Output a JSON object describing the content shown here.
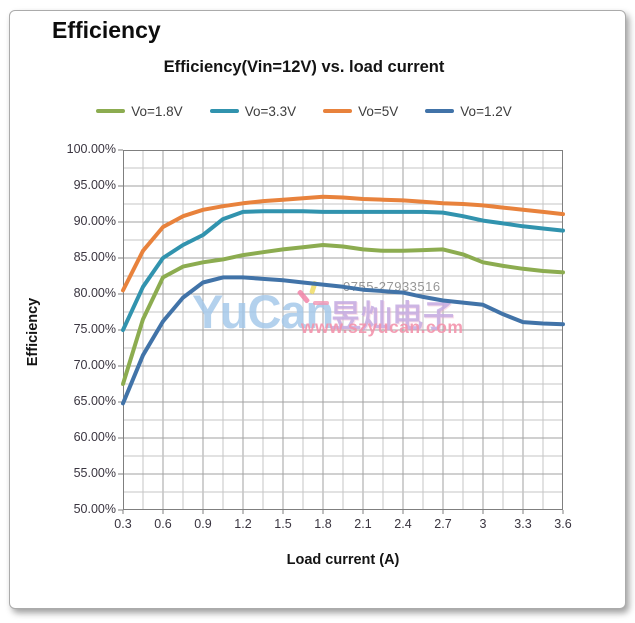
{
  "page": {
    "heading": "Efficiency"
  },
  "watermark": {
    "phone": "0755-27933516",
    "brand": "YuCan",
    "chinese": "昱灿电子",
    "url": "www.szyucan.com"
  },
  "chart_data": {
    "type": "line",
    "title": "Efficiency(Vin=12V) vs. load current",
    "xlabel": "Load current (A)",
    "ylabel": "Efficiency",
    "xlim": [
      0.3,
      3.6
    ],
    "ylim": [
      50,
      100
    ],
    "grid": true,
    "legend_position": "top",
    "x_tick_labels": [
      "0.3",
      "0.6",
      "0.9",
      "1.2",
      "1.5",
      "1.8",
      "2.1",
      "2.4",
      "2.7",
      "3",
      "3.3",
      "3.6"
    ],
    "x_major_ticks": [
      0.3,
      0.6,
      0.9,
      1.2,
      1.5,
      1.8,
      2.1,
      2.4,
      2.7,
      3.0,
      3.3,
      3.6
    ],
    "y_tick_labels": [
      "100.00%",
      "95.00%",
      "90.00%",
      "85.00%",
      "80.00%",
      "75.00%",
      "70.00%",
      "65.00%",
      "60.00%",
      "55.00%",
      "50.00%"
    ],
    "y_major_step": 5,
    "y_minor_step": 2.5,
    "x_minor_step": 0.15,
    "x": [
      0.3,
      0.45,
      0.6,
      0.75,
      0.9,
      1.05,
      1.2,
      1.35,
      1.5,
      1.65,
      1.8,
      1.95,
      2.1,
      2.25,
      2.4,
      2.55,
      2.7,
      2.85,
      3.0,
      3.15,
      3.3,
      3.45,
      3.6
    ],
    "series": [
      {
        "name": "Vo=1.8V",
        "color": "#8CAC50",
        "values": [
          67.5,
          76.5,
          82.3,
          83.8,
          84.4,
          84.8,
          85.4,
          85.8,
          86.2,
          86.5,
          86.8,
          86.6,
          86.2,
          86.0,
          86.0,
          86.1,
          86.2,
          85.5,
          84.4,
          83.9,
          83.5,
          83.2,
          83.0
        ]
      },
      {
        "name": "Vo=3.3V",
        "color": "#3193AE",
        "values": [
          75.0,
          81.0,
          85.0,
          86.8,
          88.2,
          90.4,
          91.4,
          91.5,
          91.5,
          91.5,
          91.4,
          91.4,
          91.4,
          91.4,
          91.4,
          91.4,
          91.3,
          90.8,
          90.2,
          89.8,
          89.4,
          89.1,
          88.8
        ]
      },
      {
        "name": "Vo=5V",
        "color": "#E8823C",
        "values": [
          80.5,
          86.0,
          89.3,
          90.8,
          91.7,
          92.2,
          92.6,
          92.9,
          93.1,
          93.3,
          93.5,
          93.4,
          93.2,
          93.1,
          93.0,
          92.8,
          92.6,
          92.5,
          92.3,
          92.0,
          91.7,
          91.4,
          91.1
        ]
      },
      {
        "name": "Vo=1.2V",
        "color": "#4173A8",
        "values": [
          64.8,
          71.5,
          76.2,
          79.5,
          81.6,
          82.3,
          82.3,
          82.1,
          81.9,
          81.6,
          81.3,
          81.0,
          80.6,
          80.4,
          80.2,
          79.6,
          79.1,
          78.8,
          78.5,
          77.2,
          76.1,
          75.9,
          75.8
        ]
      }
    ]
  }
}
